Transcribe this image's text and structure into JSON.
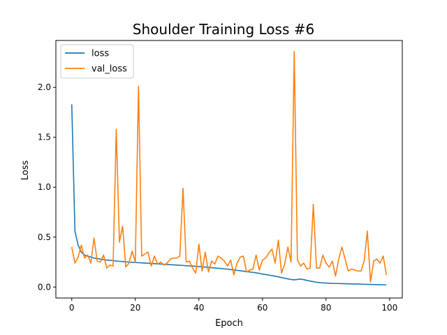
{
  "chart_data": {
    "type": "line",
    "title": "Shoulder Training Loss #6",
    "xlabel": "Epoch",
    "ylabel": "Loss",
    "xlim": [
      -5,
      104
    ],
    "ylim": [
      -0.11,
      2.47
    ],
    "xticks": [
      0,
      20,
      40,
      60,
      80,
      100
    ],
    "yticks": [
      0.0,
      0.5,
      1.0,
      1.5,
      2.0
    ],
    "xtick_labels": [
      "0",
      "20",
      "40",
      "60",
      "80",
      "100"
    ],
    "ytick_labels": [
      "0.0",
      "0.5",
      "1.0",
      "1.5",
      "2.0"
    ],
    "legend_position": "top-left",
    "grid": false,
    "series": [
      {
        "name": "loss",
        "color": "#1f77b4",
        "values": [
          1.83,
          0.56,
          0.42,
          0.35,
          0.32,
          0.31,
          0.3,
          0.29,
          0.285,
          0.28,
          0.275,
          0.27,
          0.268,
          0.265,
          0.26,
          0.258,
          0.255,
          0.252,
          0.25,
          0.248,
          0.246,
          0.244,
          0.242,
          0.24,
          0.238,
          0.236,
          0.234,
          0.232,
          0.23,
          0.228,
          0.226,
          0.224,
          0.222,
          0.22,
          0.218,
          0.216,
          0.214,
          0.212,
          0.21,
          0.208,
          0.205,
          0.202,
          0.2,
          0.197,
          0.194,
          0.191,
          0.188,
          0.185,
          0.182,
          0.179,
          0.175,
          0.171,
          0.167,
          0.163,
          0.159,
          0.155,
          0.151,
          0.147,
          0.142,
          0.137,
          0.13,
          0.125,
          0.12,
          0.114,
          0.108,
          0.102,
          0.095,
          0.088,
          0.082,
          0.076,
          0.072,
          0.076,
          0.08,
          0.074,
          0.066,
          0.06,
          0.054,
          0.048,
          0.044,
          0.042,
          0.04,
          0.038,
          0.036,
          0.036,
          0.035,
          0.034,
          0.033,
          0.032,
          0.031,
          0.03,
          0.03,
          0.029,
          0.028,
          0.027,
          0.026,
          0.025,
          0.024,
          0.023,
          0.022,
          0.022
        ]
      },
      {
        "name": "val_loss",
        "color": "#ff7f0e",
        "values": [
          0.4,
          0.24,
          0.3,
          0.42,
          0.29,
          0.32,
          0.24,
          0.49,
          0.26,
          0.25,
          0.32,
          0.19,
          0.22,
          0.21,
          1.58,
          0.45,
          0.61,
          0.2,
          0.24,
          0.36,
          0.25,
          2.01,
          0.31,
          0.33,
          0.35,
          0.21,
          0.31,
          0.23,
          0.25,
          0.22,
          0.24,
          0.28,
          0.29,
          0.29,
          0.31,
          0.99,
          0.25,
          0.26,
          0.19,
          0.14,
          0.43,
          0.16,
          0.35,
          0.15,
          0.26,
          0.23,
          0.31,
          0.29,
          0.26,
          0.21,
          0.27,
          0.12,
          0.24,
          0.3,
          0.31,
          0.15,
          0.17,
          0.18,
          0.32,
          0.17,
          0.27,
          0.29,
          0.34,
          0.38,
          0.24,
          0.47,
          0.14,
          0.23,
          0.4,
          0.25,
          2.36,
          0.27,
          0.21,
          0.24,
          0.18,
          0.19,
          0.83,
          0.19,
          0.19,
          0.32,
          0.24,
          0.2,
          0.26,
          0.11,
          0.28,
          0.4,
          0.28,
          0.16,
          0.18,
          0.17,
          0.16,
          0.16,
          0.26,
          0.56,
          0.05,
          0.26,
          0.28,
          0.24,
          0.31,
          0.12
        ]
      }
    ]
  }
}
